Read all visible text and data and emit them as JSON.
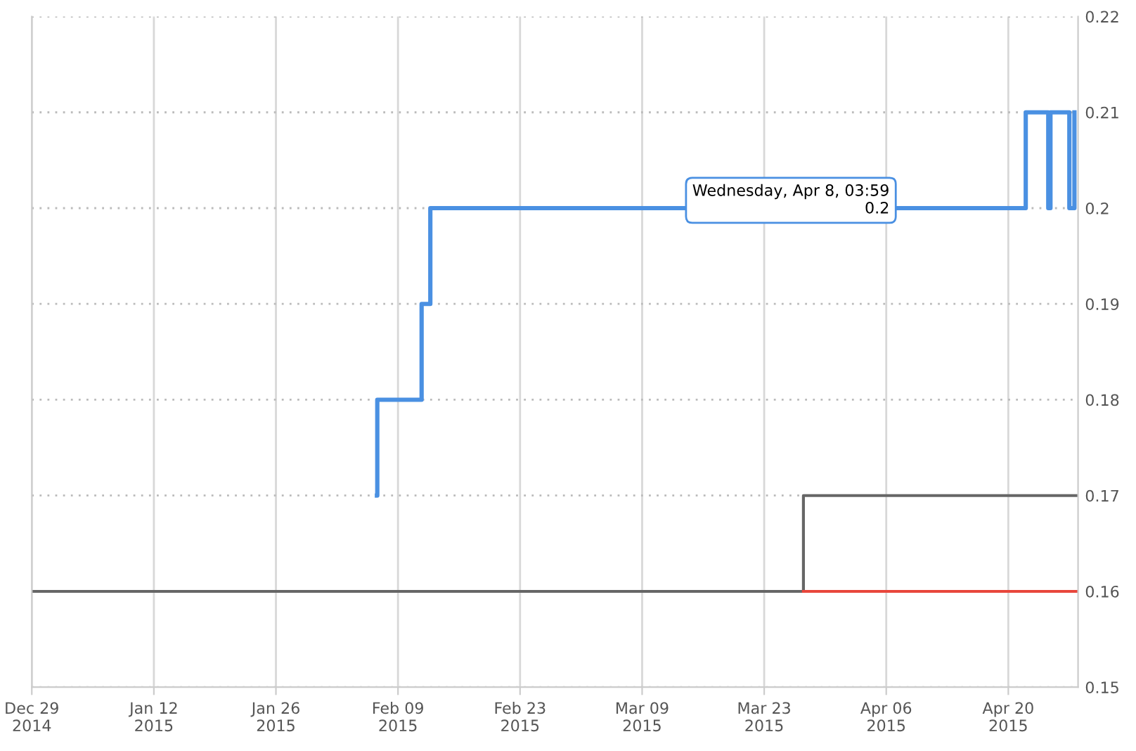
{
  "chart_data": {
    "type": "step",
    "series": [
      {
        "color": "#4a90e2",
        "x": [
          "2015-02-06T14:00",
          "2015-02-06T15:00",
          "2015-02-11T17:00",
          "2015-02-12T17:00",
          "2015-04-22T00:00",
          "2015-04-24T14:00",
          "2015-04-24T20:00",
          "2015-04-27T00:00",
          "2015-04-27T14:00"
        ],
        "values": [
          0.17,
          0.18,
          0.19,
          0.2,
          0.21,
          0.2,
          0.21,
          0.2,
          0.21
        ]
      },
      {
        "color": "#666666",
        "x": [
          "2014-12-29",
          "2015-03-27T12:00",
          "2015-04-28"
        ],
        "values": [
          0.16,
          0.17,
          0.17
        ]
      },
      {
        "color": "#e8463c",
        "x": [
          "2015-03-27T12:00",
          "2015-04-28"
        ],
        "values": [
          0.16,
          0.16
        ]
      }
    ],
    "xlim": [
      "2014-12-29",
      "2015-04-28"
    ],
    "xticks": [
      {
        "value": "2014-12-29",
        "label": "Dec 29\n2014"
      },
      {
        "value": "2015-01-12",
        "label": "Jan 12\n2015"
      },
      {
        "value": "2015-01-26",
        "label": "Jan 26\n2015"
      },
      {
        "value": "2015-02-09",
        "label": "Feb 09\n2015"
      },
      {
        "value": "2015-02-23",
        "label": "Feb 23\n2015"
      },
      {
        "value": "2015-03-09",
        "label": "Mar 09\n2015"
      },
      {
        "value": "2015-03-23",
        "label": "Mar 23\n2015"
      },
      {
        "value": "2015-04-06",
        "label": "Apr 06\n2015"
      },
      {
        "value": "2015-04-20",
        "label": "Apr 20\n2015"
      }
    ],
    "ylim": [
      0.15,
      0.22
    ],
    "yticks": [
      0.15,
      0.16,
      0.17,
      0.18,
      0.19,
      0.2,
      0.21,
      0.22
    ],
    "grid": true,
    "legend": false,
    "annotations": [
      {
        "text": "Wednesday, Apr 8, 03:59\n0.2",
        "x": "2015-04-08T03:59",
        "y": 0.2
      }
    ]
  }
}
